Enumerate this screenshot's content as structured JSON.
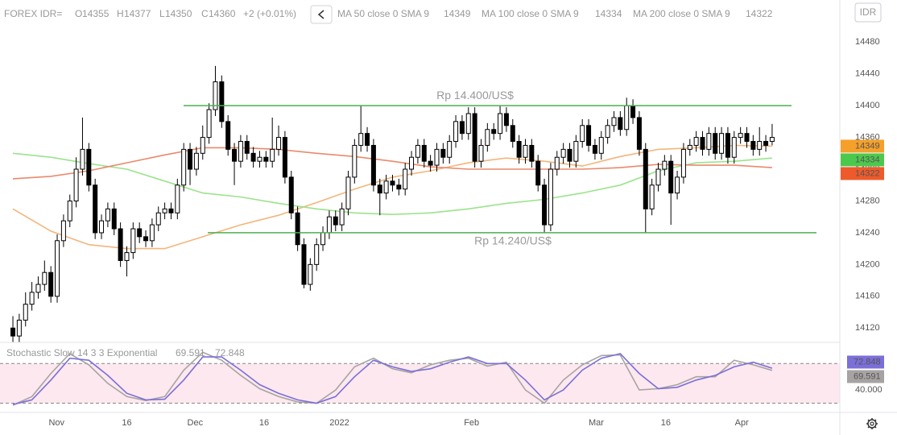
{
  "chart_data": [
    {
      "type": "candlestick",
      "header": {
        "symbol": "FOREX IDR=",
        "ohlc_letters": [
          "O",
          "H",
          "L",
          "C"
        ],
        "change": "+2 (+0.01%)",
        "currency": "IDR"
      },
      "xlim": [
        -2.04,
        130.7
      ],
      "ylim": [
        14102,
        14533
      ],
      "yticks": [
        14120,
        14160,
        14200,
        14240,
        14280,
        14320,
        14360,
        14400,
        14440,
        14480
      ],
      "xticks": [
        {
          "value": 6.9,
          "label": "Nov"
        },
        {
          "value": 18,
          "label": "16"
        },
        {
          "value": 28.8,
          "label": "Dec"
        },
        {
          "value": 39.7,
          "label": "16"
        },
        {
          "value": 51.6,
          "label": "2022"
        },
        {
          "value": 72.5,
          "label": "Feb"
        },
        {
          "value": 92.2,
          "label": "Mar"
        },
        {
          "value": 103.2,
          "label": "16"
        },
        {
          "value": 115.2,
          "label": "Apr"
        }
      ],
      "hlines": [
        {
          "value": 14400,
          "label": "Rp 14.400/US$",
          "color": "#4caf50"
        },
        {
          "value": 14240,
          "label": "Rp 14.240/US$",
          "color": "#4caf50"
        }
      ],
      "candles": [
        [
          14120,
          14135,
          14102,
          14110
        ],
        [
          14110,
          14138,
          14102,
          14130
        ],
        [
          14130,
          14165,
          14122,
          14150
        ],
        [
          14150,
          14178,
          14142,
          14165
        ],
        [
          14165,
          14185,
          14157,
          14175
        ],
        [
          14175,
          14205,
          14167,
          14190
        ],
        [
          14190,
          14198,
          14152,
          14160
        ],
        [
          14160,
          14238,
          14152,
          14230
        ],
        [
          14230,
          14263,
          14222,
          14255
        ],
        [
          14255,
          14288,
          14247,
          14280
        ],
        [
          14280,
          14335,
          14272,
          14320
        ],
        [
          14320,
          14385,
          14312,
          14345
        ],
        [
          14345,
          14353,
          14292,
          14300
        ],
        [
          14300,
          14308,
          14232,
          14240
        ],
        [
          14240,
          14263,
          14232,
          14255
        ],
        [
          14255,
          14278,
          14247,
          14270
        ],
        [
          14270,
          14278,
          14237,
          14245
        ],
        [
          14245,
          14253,
          14197,
          14205
        ],
        [
          14205,
          14223,
          14185,
          14215
        ],
        [
          14215,
          14253,
          14207,
          14245
        ],
        [
          14245,
          14253,
          14227,
          14235
        ],
        [
          14235,
          14243,
          14222,
          14230
        ],
        [
          14230,
          14258,
          14222,
          14250
        ],
        [
          14250,
          14273,
          14242,
          14265
        ],
        [
          14265,
          14278,
          14257,
          14270
        ],
        [
          14270,
          14278,
          14257,
          14265
        ],
        [
          14265,
          14308,
          14257,
          14300
        ],
        [
          14300,
          14353,
          14292,
          14345
        ],
        [
          14345,
          14353,
          14300,
          14320
        ],
        [
          14320,
          14348,
          14312,
          14340
        ],
        [
          14340,
          14375,
          14332,
          14360
        ],
        [
          14360,
          14403,
          14352,
          14395
        ],
        [
          14395,
          14450,
          14387,
          14430
        ],
        [
          14430,
          14438,
          14372,
          14380
        ],
        [
          14380,
          14388,
          14337,
          14345
        ],
        [
          14345,
          14353,
          14300,
          14330
        ],
        [
          14330,
          14363,
          14322,
          14355
        ],
        [
          14355,
          14363,
          14332,
          14340
        ],
        [
          14340,
          14348,
          14322,
          14330
        ],
        [
          14330,
          14343,
          14322,
          14335
        ],
        [
          14335,
          14343,
          14322,
          14330
        ],
        [
          14330,
          14385,
          14322,
          14345
        ],
        [
          14345,
          14375,
          14337,
          14360
        ],
        [
          14360,
          14368,
          14302,
          14310
        ],
        [
          14310,
          14318,
          14257,
          14265
        ],
        [
          14265,
          14273,
          14217,
          14225
        ],
        [
          14225,
          14233,
          14170,
          14175
        ],
        [
          14175,
          14208,
          14167,
          14200
        ],
        [
          14200,
          14233,
          14192,
          14225
        ],
        [
          14225,
          14248,
          14217,
          14240
        ],
        [
          14240,
          14268,
          14232,
          14260
        ],
        [
          14260,
          14268,
          14242,
          14250
        ],
        [
          14250,
          14278,
          14242,
          14270
        ],
        [
          14270,
          14318,
          14262,
          14310
        ],
        [
          14310,
          14358,
          14302,
          14350
        ],
        [
          14350,
          14400,
          14342,
          14365
        ],
        [
          14365,
          14373,
          14342,
          14350
        ],
        [
          14350,
          14358,
          14292,
          14300
        ],
        [
          14300,
          14308,
          14262,
          14290
        ],
        [
          14290,
          14313,
          14282,
          14305
        ],
        [
          14305,
          14313,
          14292,
          14300
        ],
        [
          14300,
          14308,
          14287,
          14295
        ],
        [
          14295,
          14328,
          14287,
          14320
        ],
        [
          14320,
          14343,
          14312,
          14335
        ],
        [
          14335,
          14358,
          14327,
          14350
        ],
        [
          14350,
          14358,
          14322,
          14330
        ],
        [
          14330,
          14338,
          14317,
          14325
        ],
        [
          14325,
          14353,
          14317,
          14345
        ],
        [
          14345,
          14353,
          14327,
          14335
        ],
        [
          14335,
          14363,
          14327,
          14355
        ],
        [
          14355,
          14388,
          14347,
          14380
        ],
        [
          14380,
          14388,
          14357,
          14365
        ],
        [
          14365,
          14398,
          14357,
          14390
        ],
        [
          14390,
          14398,
          14322,
          14330
        ],
        [
          14330,
          14358,
          14322,
          14350
        ],
        [
          14350,
          14378,
          14342,
          14370
        ],
        [
          14370,
          14378,
          14357,
          14365
        ],
        [
          14365,
          14400,
          14357,
          14390
        ],
        [
          14390,
          14398,
          14367,
          14375
        ],
        [
          14375,
          14383,
          14347,
          14355
        ],
        [
          14355,
          14363,
          14327,
          14335
        ],
        [
          14335,
          14358,
          14327,
          14350
        ],
        [
          14350,
          14358,
          14322,
          14330
        ],
        [
          14330,
          14338,
          14292,
          14300
        ],
        [
          14300,
          14308,
          14240,
          14250
        ],
        [
          14250,
          14328,
          14242,
          14320
        ],
        [
          14320,
          14343,
          14312,
          14335
        ],
        [
          14335,
          14353,
          14327,
          14345
        ],
        [
          14345,
          14353,
          14322,
          14330
        ],
        [
          14330,
          14363,
          14322,
          14355
        ],
        [
          14355,
          14383,
          14347,
          14375
        ],
        [
          14375,
          14383,
          14342,
          14350
        ],
        [
          14350,
          14358,
          14332,
          14340
        ],
        [
          14340,
          14368,
          14332,
          14360
        ],
        [
          14360,
          14383,
          14352,
          14375
        ],
        [
          14375,
          14393,
          14367,
          14385
        ],
        [
          14385,
          14393,
          14362,
          14370
        ],
        [
          14370,
          14410,
          14362,
          14400
        ],
        [
          14400,
          14408,
          14377,
          14385
        ],
        [
          14385,
          14393,
          14337,
          14345
        ],
        [
          14345,
          14353,
          14240,
          14270
        ],
        [
          14270,
          14308,
          14262,
          14300
        ],
        [
          14300,
          14328,
          14292,
          14320
        ],
        [
          14320,
          14338,
          14312,
          14330
        ],
        [
          14330,
          14338,
          14250,
          14290
        ],
        [
          14290,
          14318,
          14282,
          14310
        ],
        [
          14310,
          14353,
          14302,
          14345
        ],
        [
          14345,
          14358,
          14337,
          14350
        ],
        [
          14350,
          14368,
          14342,
          14360
        ],
        [
          14360,
          14368,
          14337,
          14345
        ],
        [
          14345,
          14373,
          14337,
          14365
        ],
        [
          14365,
          14373,
          14332,
          14340
        ],
        [
          14340,
          14373,
          14332,
          14365
        ],
        [
          14365,
          14373,
          14327,
          14335
        ],
        [
          14335,
          14368,
          14327,
          14360
        ],
        [
          14360,
          14373,
          14352,
          14365
        ],
        [
          14365,
          14373,
          14347,
          14355
        ],
        [
          14355,
          14363,
          14337,
          14345
        ],
        [
          14345,
          14373,
          14337,
          14355
        ],
        [
          14355,
          14363,
          14342,
          14350
        ],
        [
          14355,
          14377,
          14350,
          14360
        ]
      ],
      "series": [
        {
          "name": "MA 50 close 0 SMA 9",
          "color": "#f4b57a",
          "label_color": "#f5a02a",
          "x": [
            0,
            6,
            12,
            18,
            24,
            30,
            36,
            42,
            48,
            54,
            60,
            66,
            72,
            78,
            84,
            90,
            96,
            102,
            108,
            114,
            120
          ],
          "values": [
            14270,
            14242,
            14225,
            14220,
            14220,
            14235,
            14250,
            14262,
            14278,
            14295,
            14310,
            14318,
            14328,
            14334,
            14330,
            14324,
            14336,
            14345,
            14347,
            14350,
            14349
          ]
        },
        {
          "name": "MA 100 close 0 SMA 9",
          "color": "#9be38c",
          "label_color": "#4cc94c",
          "x": [
            0,
            6,
            12,
            18,
            24,
            30,
            36,
            42,
            48,
            54,
            60,
            66,
            72,
            78,
            84,
            90,
            96,
            102,
            108,
            114,
            120
          ],
          "values": [
            14340,
            14335,
            14327,
            14320,
            14305,
            14290,
            14285,
            14277,
            14270,
            14265,
            14263,
            14265,
            14270,
            14277,
            14282,
            14290,
            14300,
            14318,
            14328,
            14330,
            14334
          ]
        },
        {
          "name": "MA 200 close 0 SMA 9",
          "color": "#e98a6c",
          "label_color": "#ee5a2a",
          "x": [
            0,
            6,
            12,
            18,
            24,
            30,
            36,
            42,
            48,
            54,
            60,
            66,
            72,
            78,
            84,
            90,
            96,
            102,
            108,
            114,
            120
          ],
          "values": [
            14308,
            14311,
            14318,
            14328,
            14338,
            14347,
            14347,
            14345,
            14340,
            14336,
            14330,
            14323,
            14320,
            14320,
            14320,
            14320,
            14322,
            14326,
            14325,
            14325,
            14322
          ]
        }
      ]
    },
    {
      "type": "line",
      "title": "Stochastic Slow 14 3 3 Exponential",
      "ylim": [
        6,
        112
      ],
      "yticks": [
        {
          "value": 40,
          "label": "40.000"
        }
      ],
      "levels": [
        80,
        20
      ],
      "series": [
        {
          "color": "#a8a3a3",
          "x": [
            0,
            3,
            6,
            9,
            12,
            15,
            18,
            21,
            24,
            27,
            30,
            33,
            36,
            39,
            42,
            45,
            48,
            51,
            54,
            57,
            60,
            63,
            66,
            69,
            72,
            75,
            78,
            81,
            84,
            87,
            90,
            93,
            96,
            99,
            102,
            105,
            108,
            111,
            114,
            117,
            120
          ],
          "values": [
            17,
            30,
            65,
            95,
            78,
            50,
            30,
            24,
            30,
            70,
            97,
            85,
            62,
            42,
            30,
            22,
            20,
            40,
            75,
            88,
            72,
            66,
            78,
            85,
            88,
            76,
            82,
            40,
            20,
            55,
            78,
            92,
            93,
            40,
            42,
            48,
            60,
            60,
            85,
            78,
            69.591
          ]
        },
        {
          "color": "#7b6fd8",
          "x": [
            0,
            3,
            6,
            9,
            12,
            15,
            18,
            21,
            24,
            27,
            30,
            33,
            36,
            39,
            42,
            45,
            48,
            51,
            54,
            57,
            60,
            63,
            66,
            69,
            72,
            75,
            78,
            81,
            84,
            87,
            90,
            93,
            96,
            99,
            102,
            105,
            108,
            111,
            114,
            117,
            120
          ],
          "values": [
            18,
            25,
            55,
            88,
            85,
            62,
            35,
            25,
            26,
            55,
            90,
            90,
            70,
            48,
            35,
            25,
            20,
            30,
            60,
            85,
            75,
            68,
            72,
            82,
            90,
            80,
            80,
            55,
            25,
            40,
            70,
            88,
            95,
            65,
            42,
            44,
            55,
            62,
            75,
            82,
            72.848
          ]
        }
      ]
    }
  ]
}
